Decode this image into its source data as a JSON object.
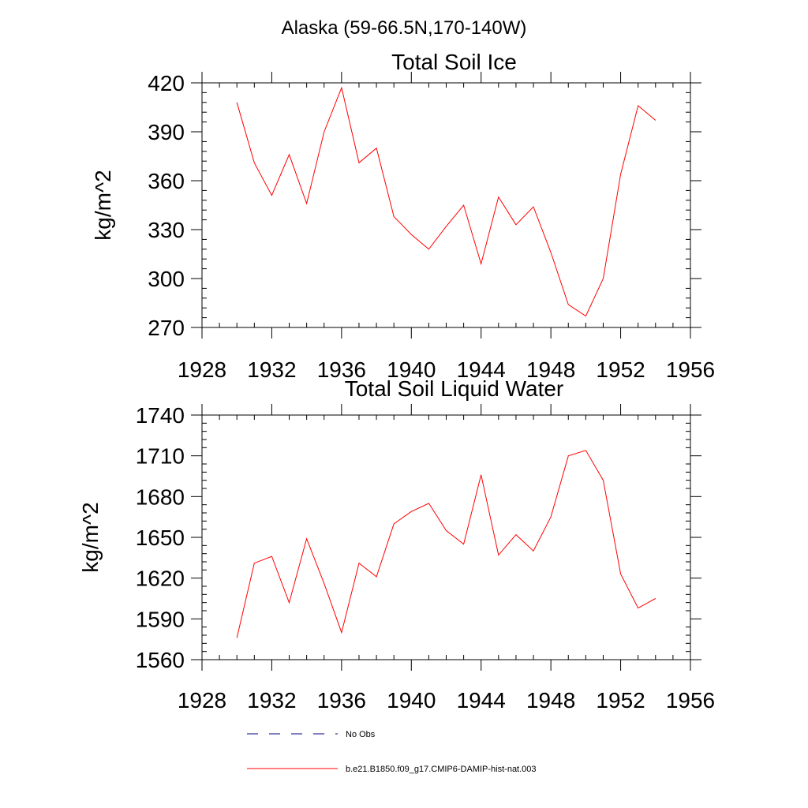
{
  "figure": {
    "title": "Alaska (59-66.5N,170-140W)"
  },
  "chart_data": [
    {
      "type": "line",
      "title": "Total Soil Ice",
      "xlabel": "",
      "ylabel": "kg/m^2",
      "xlim": [
        1928,
        1956
      ],
      "ylim": [
        270,
        420
      ],
      "xticks": [
        1928,
        1932,
        1936,
        1940,
        1944,
        1948,
        1952,
        1956
      ],
      "yticks": [
        270,
        300,
        330,
        360,
        390,
        420
      ],
      "grid": false,
      "x": [
        1930,
        1931,
        1932,
        1933,
        1934,
        1935,
        1936,
        1937,
        1938,
        1939,
        1940,
        1941,
        1942,
        1943,
        1944,
        1945,
        1946,
        1947,
        1948,
        1949,
        1950,
        1951,
        1952,
        1953,
        1954
      ],
      "series": [
        {
          "name": "b.e21.B1850.f09_g17.CMIP6-DAMIP-hist-nat.003",
          "color": "#ff0000",
          "values": [
            408,
            371,
            351,
            376,
            346,
            390,
            417,
            371,
            380,
            338,
            327,
            318,
            332,
            345,
            309,
            350,
            333,
            344,
            316,
            284,
            277,
            300,
            364,
            406,
            397
          ]
        }
      ]
    },
    {
      "type": "line",
      "title": "Total Soil Liquid Water",
      "xlabel": "",
      "ylabel": "kg/m^2",
      "xlim": [
        1928,
        1956
      ],
      "ylim": [
        1560,
        1740
      ],
      "xticks": [
        1928,
        1932,
        1936,
        1940,
        1944,
        1948,
        1952,
        1956
      ],
      "yticks": [
        1560,
        1590,
        1620,
        1650,
        1680,
        1710,
        1740
      ],
      "grid": false,
      "x": [
        1930,
        1931,
        1932,
        1933,
        1934,
        1935,
        1936,
        1937,
        1938,
        1939,
        1940,
        1941,
        1942,
        1943,
        1944,
        1945,
        1946,
        1947,
        1948,
        1949,
        1950,
        1951,
        1952,
        1953,
        1954
      ],
      "series": [
        {
          "name": "b.e21.B1850.f09_g17.CMIP6-DAMIP-hist-nat.003",
          "color": "#ff0000",
          "values": [
            1576,
            1631,
            1636,
            1602,
            1649,
            1616,
            1580,
            1631,
            1621,
            1660,
            1669,
            1675,
            1655,
            1645,
            1696,
            1637,
            1652,
            1640,
            1665,
            1710,
            1714,
            1692,
            1623,
            1598,
            1605
          ]
        }
      ]
    }
  ],
  "legend": {
    "placement": "bottom",
    "items": [
      {
        "label": "No Obs",
        "color": "#000080",
        "dashed": true
      },
      {
        "label": "b.e21.B1850.f09_g17.CMIP6-DAMIP-hist-nat.003",
        "color": "#ff0000",
        "dashed": false
      }
    ]
  }
}
